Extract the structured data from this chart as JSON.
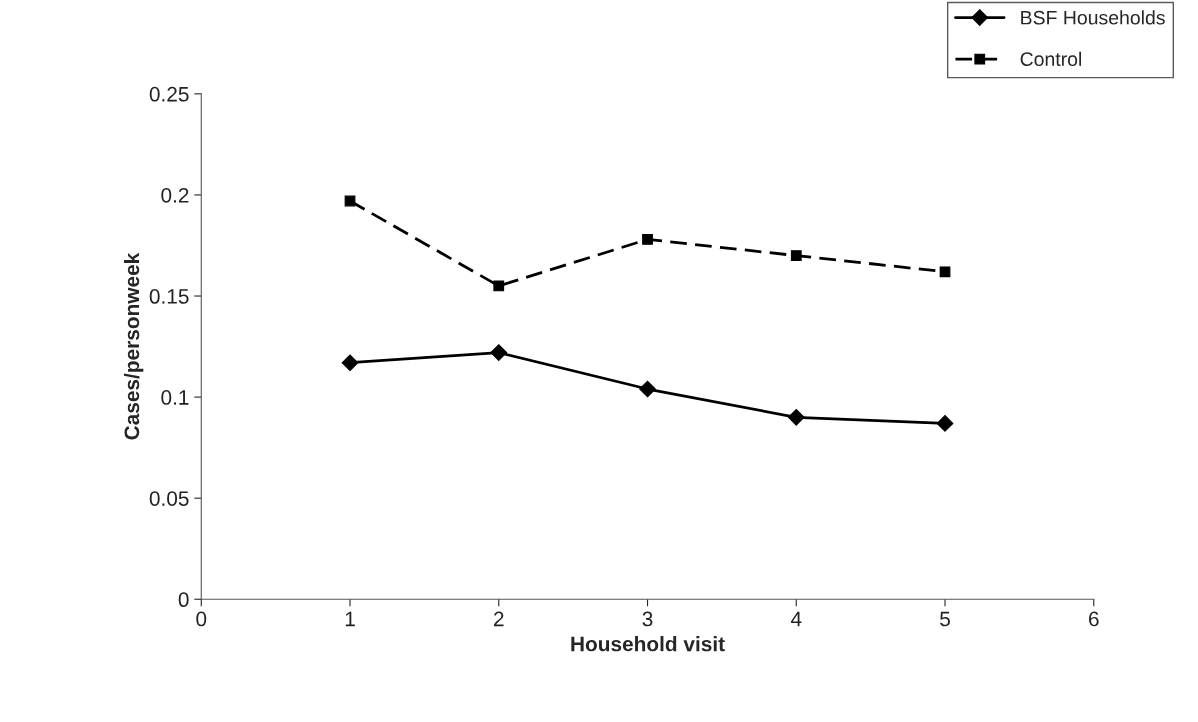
{
  "chart_data": {
    "type": "line",
    "xlabel": "Household visit",
    "ylabel": "Cases/personweek",
    "x": [
      1,
      2,
      3,
      4,
      5
    ],
    "series": [
      {
        "name": "BSF Households",
        "color": "#000000",
        "marker": "diamond",
        "line_style": "solid",
        "values": [
          0.117,
          0.122,
          0.104,
          0.09,
          0.087
        ]
      },
      {
        "name": "Control",
        "color": "#000000",
        "marker": "square",
        "line_style": "dashed",
        "values": [
          0.197,
          0.155,
          0.178,
          0.17,
          0.162
        ]
      }
    ],
    "xlim": [
      0,
      6
    ],
    "xticks": [
      0,
      1,
      2,
      3,
      4,
      5,
      6
    ],
    "ylim": [
      0,
      0.25
    ],
    "yticks": [
      0,
      0.05,
      0.1,
      0.15,
      0.2,
      0.25
    ],
    "grid": false,
    "legend": "top right"
  }
}
